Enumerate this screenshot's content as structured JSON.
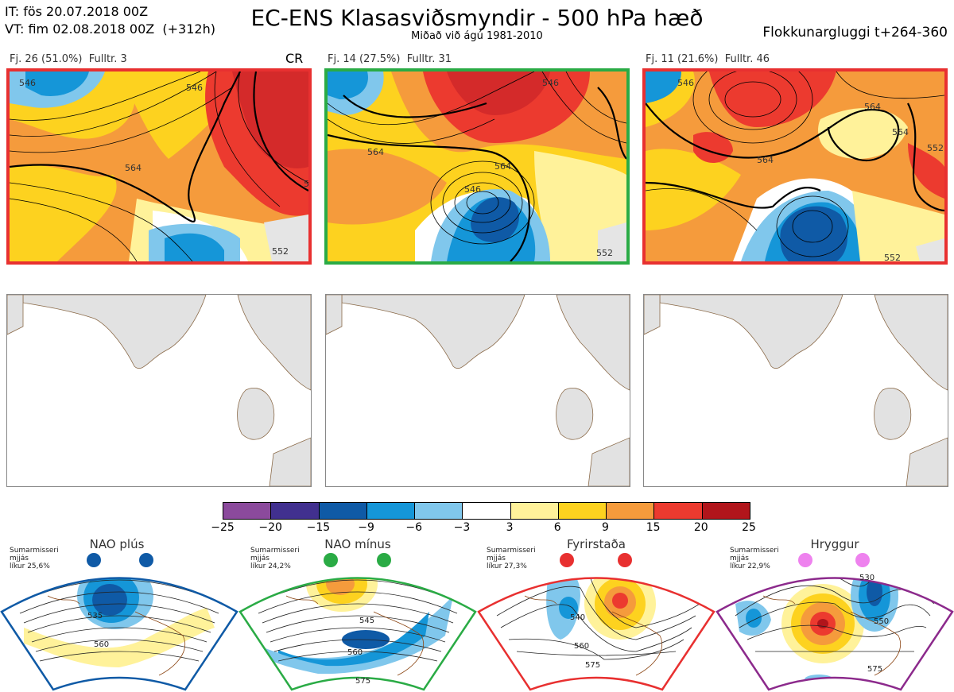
{
  "header": {
    "it_line": "IT: fös 20.07.2018 00Z",
    "vt_line": "VT: fim 02.08.2018 00Z  (+312h)",
    "title": "EC-ENS Klasasviðsmyndir - 500 hPa hæð",
    "subtitle": "Miðað við ágú 1981-2010",
    "window": "Flokkunargluggi t+264-360"
  },
  "clusters": [
    {
      "label": "Fj. 26 (51.0%)  Fulltr. 3",
      "tag": "CR",
      "frame_color": "#e83030",
      "contour_labels": [
        "546",
        "546",
        "564",
        "552",
        "552"
      ]
    },
    {
      "label": "Fj. 14 (27.5%)  Fulltr. 31",
      "tag": "",
      "frame_color": "#2aab45",
      "contour_labels": [
        "546",
        "564",
        "564",
        "546",
        "552"
      ]
    },
    {
      "label": "Fj. 11 (21.6%)  Fulltr. 46",
      "tag": "",
      "frame_color": "#e83030",
      "contour_labels": [
        "546",
        "564",
        "564",
        "564",
        "552",
        "552"
      ]
    }
  ],
  "colorbar": {
    "ticks": [
      "−25",
      "−20",
      "−15",
      "−9",
      "−6",
      "−3",
      "3",
      "6",
      "9",
      "15",
      "20",
      "25"
    ],
    "colors": [
      "#8b4a9c",
      "#41308f",
      "#0f5aa6",
      "#1596d8",
      "#80c7ec",
      "#ffffff",
      "#fff29a",
      "#fdd21f",
      "#f59b3c",
      "#ec3a2f",
      "#b1151b"
    ]
  },
  "regimes": [
    {
      "name": "NAO plús",
      "season": "Sumarmisseri",
      "mean": "mjjás",
      "prob": "líkur 25,6%",
      "color": "#0f5aa6",
      "contours": [
        "535",
        "560"
      ]
    },
    {
      "name": "NAO mínus",
      "season": "Sumarmisseri",
      "mean": "mjjás",
      "prob": "líkur 24,2%",
      "color": "#2aab45",
      "contours": [
        "545",
        "560",
        "575"
      ]
    },
    {
      "name": "Fyrirstaða",
      "season": "Sumarmisseri",
      "mean": "mjjás",
      "prob": "líkur 27,3%",
      "color": "#e83030",
      "contours": [
        "540",
        "560",
        "575"
      ]
    },
    {
      "name": "Hryggur",
      "season": "Sumarmisseri",
      "mean": "mjjás",
      "prob": "líkur 22,9%",
      "color": "#8c2a8c",
      "contours": [
        "530",
        "550",
        "575"
      ]
    }
  ]
}
